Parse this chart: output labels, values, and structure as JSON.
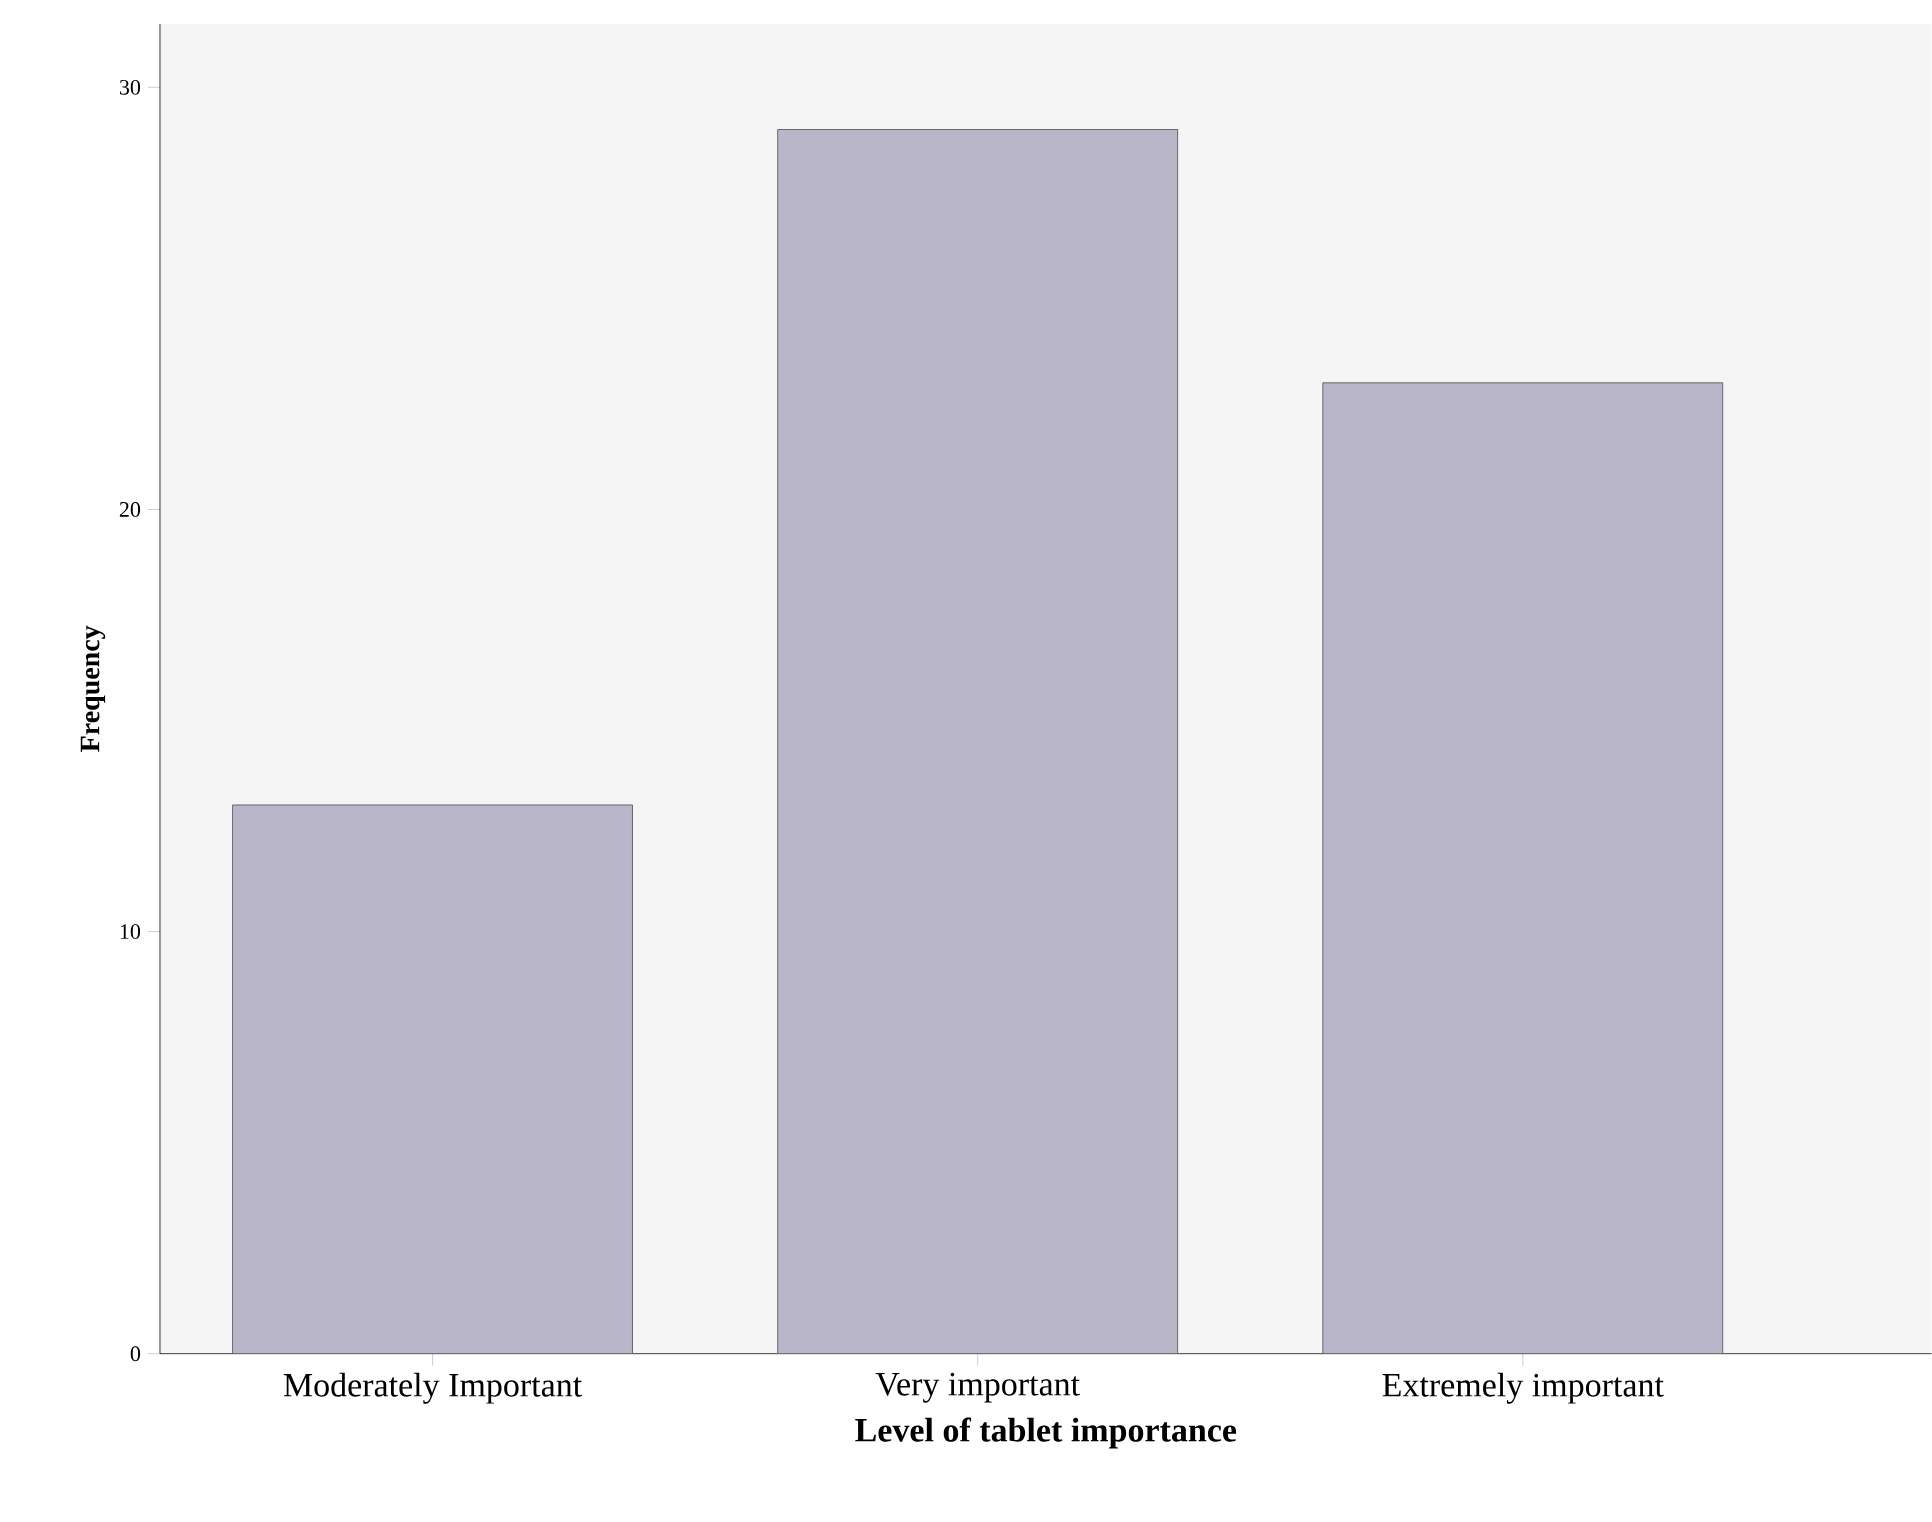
{
  "chart_data": {
    "type": "bar",
    "xlabel": "Level of tablet importance",
    "ylabel": "Frequency",
    "categories": [
      "Moderately Important",
      "Very important",
      "Extremely important"
    ],
    "values": [
      13,
      29,
      23
    ],
    "color": "#b9b6c9",
    "ylim": [
      0,
      31.5
    ],
    "yticks": [
      0,
      10,
      20,
      30
    ],
    "grid": false
  }
}
